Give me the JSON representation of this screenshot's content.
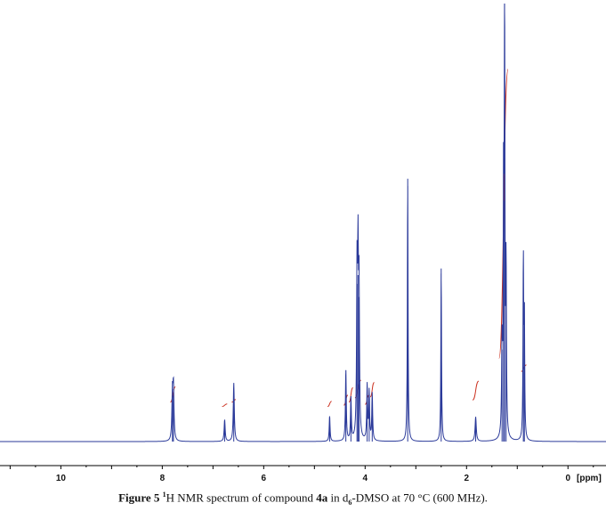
{
  "chart_data": {
    "type": "line",
    "x_unit_label": "[ppm]",
    "x_range": [
      11.2,
      -0.75
    ],
    "x_reversed": true,
    "x_ticks": [
      "10",
      "8",
      "6",
      "4",
      "2",
      "0"
    ],
    "x_tick_values": [
      10,
      8,
      6,
      4,
      2,
      0
    ],
    "y_range": [
      0,
      100
    ],
    "grid": false,
    "colors": {
      "spectrum": "#2b3a9a",
      "integral": "#cc3322",
      "axis": "#000000"
    },
    "peaks": [
      {
        "ppm": 7.8,
        "height": 10.5,
        "width": 0.012
      },
      {
        "ppm": 7.78,
        "height": 12.0,
        "width": 0.012
      },
      {
        "ppm": 6.77,
        "height": 5.0,
        "width": 0.012
      },
      {
        "ppm": 6.59,
        "height": 13.4,
        "width": 0.012
      },
      {
        "ppm": 4.7,
        "height": 5.8,
        "width": 0.01
      },
      {
        "ppm": 4.38,
        "height": 16.3,
        "width": 0.01
      },
      {
        "ppm": 4.28,
        "height": 9.7,
        "width": 0.01
      },
      {
        "ppm": 4.16,
        "height": 36.0,
        "width": 0.01
      },
      {
        "ppm": 4.14,
        "height": 38.0,
        "width": 0.01
      },
      {
        "ppm": 4.12,
        "height": 33.0,
        "width": 0.01
      },
      {
        "ppm": 3.96,
        "height": 12.5,
        "width": 0.01
      },
      {
        "ppm": 3.92,
        "height": 11.0,
        "width": 0.01
      },
      {
        "ppm": 3.86,
        "height": 10.8,
        "width": 0.01
      },
      {
        "ppm": 3.16,
        "height": 60.0,
        "width": 0.008
      },
      {
        "ppm": 2.5,
        "height": 39.5,
        "width": 0.008
      },
      {
        "ppm": 1.82,
        "height": 5.6,
        "width": 0.014
      },
      {
        "ppm": 1.3,
        "height": 21.0,
        "width": 0.01
      },
      {
        "ppm": 1.27,
        "height": 55.0,
        "width": 0.008
      },
      {
        "ppm": 1.25,
        "height": 100.0,
        "width": 0.008
      },
      {
        "ppm": 1.22,
        "height": 38.0,
        "width": 0.008
      },
      {
        "ppm": 0.88,
        "height": 41.0,
        "width": 0.008
      },
      {
        "ppm": 0.86,
        "height": 28.0,
        "width": 0.008
      }
    ],
    "integrals": [
      {
        "from": 7.84,
        "to": 7.74,
        "y0": 9,
        "y1": 12.5
      },
      {
        "from": 6.82,
        "to": 6.72,
        "y0": 8,
        "y1": 8.6
      },
      {
        "from": 6.63,
        "to": 6.55,
        "y0": 9,
        "y1": 9.6
      },
      {
        "from": 4.74,
        "to": 4.66,
        "y0": 8,
        "y1": 9.2
      },
      {
        "from": 4.42,
        "to": 4.34,
        "y0": 8.3,
        "y1": 10.6
      },
      {
        "from": 4.32,
        "to": 4.24,
        "y0": 9.0,
        "y1": 12.3
      },
      {
        "from": 4.2,
        "to": 4.08,
        "y0": 10.0,
        "y1": 14.0
      },
      {
        "from": 4.0,
        "to": 3.92,
        "y0": 8.5,
        "y1": 10.6
      },
      {
        "from": 3.9,
        "to": 3.82,
        "y0": 10.2,
        "y1": 13.5
      },
      {
        "from": 1.88,
        "to": 1.76,
        "y0": 9.5,
        "y1": 13.8
      },
      {
        "from": 1.36,
        "to": 1.18,
        "y0": 19,
        "y1": 85
      },
      {
        "from": 0.92,
        "to": 0.82,
        "y0": 16,
        "y1": 17.5
      }
    ]
  },
  "caption": {
    "label": "Figure 5",
    "sup": "1",
    "pre_bold": "H NMR spectrum of compound ",
    "compound": "4a",
    "mid": " in d",
    "sub": "6",
    "post": "-DMSO at 70 °C (600 MHz)."
  }
}
